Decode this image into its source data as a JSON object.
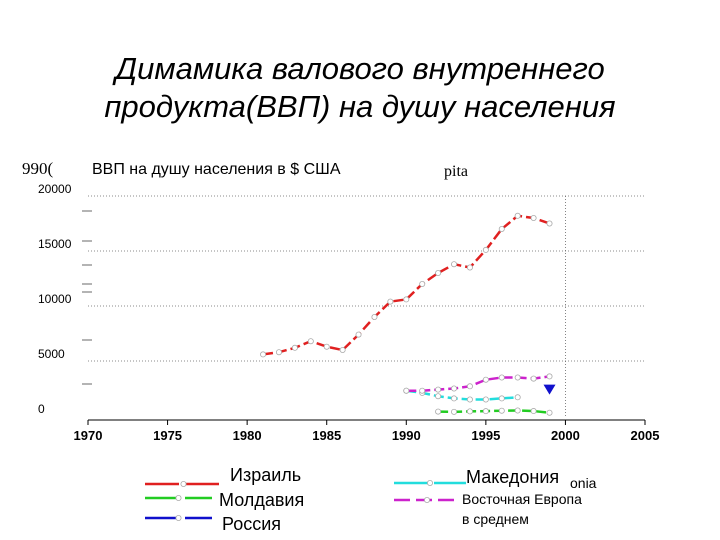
{
  "slide": {
    "title_line1": "Димамика валового внутреннего",
    "title_line2": "продукта(ВВП) на душу населения"
  },
  "chart_data": {
    "type": "line",
    "subtitle": "ВВП на душу населения в $ США",
    "artifact_left": "990(",
    "artifact_right": "pita",
    "xlim": [
      1970,
      2005
    ],
    "ylim": [
      0,
      20000
    ],
    "x_ticks": [
      1970,
      1975,
      1980,
      1985,
      1990,
      1995,
      2000,
      2005
    ],
    "y_ticks": [
      0,
      5000,
      10000,
      15000,
      20000
    ],
    "x_tick_labels": [
      "1970",
      "1975",
      "1980",
      "1985",
      "1990",
      "1995",
      "2000",
      "2005"
    ],
    "y_tick_labels": [
      "0",
      "5000",
      "10000",
      "15000",
      "20000"
    ],
    "grid": "dotted horizontal lines at y ticks, dotted vertical line at 2000",
    "series": [
      {
        "name": "Израиль",
        "color": "#e02020",
        "x": [
          1981,
          1982,
          1983,
          1984,
          1985,
          1986,
          1987,
          1988,
          1989,
          1990,
          1991,
          1992,
          1993,
          1994,
          1995,
          1996,
          1997,
          1998,
          1999
        ],
        "y": [
          5600,
          5800,
          6200,
          6800,
          6300,
          6000,
          7400,
          9000,
          10400,
          10600,
          12000,
          13000,
          13800,
          13500,
          15100,
          17000,
          18200,
          18000,
          17500
        ]
      },
      {
        "name": "Молдавия",
        "color": "#22cc22",
        "x": [
          1992,
          1993,
          1994,
          1995,
          1996,
          1997,
          1998,
          1999
        ],
        "y": [
          400,
          380,
          420,
          440,
          480,
          500,
          450,
          300
        ]
      },
      {
        "name": "Россия",
        "color": "#1010cc",
        "x": [
          1999
        ],
        "y": [
          2400
        ]
      },
      {
        "name": "Македония",
        "color": "#22dddd",
        "x": [
          1990,
          1991,
          1992,
          1993,
          1994,
          1995,
          1996,
          1997
        ],
        "y": [
          2300,
          2100,
          1800,
          1600,
          1500,
          1500,
          1600,
          1700
        ]
      },
      {
        "name": "Восточная Европа в среднем",
        "color": "#cc22cc",
        "x": [
          1990,
          1991,
          1992,
          1993,
          1994,
          1995,
          1996,
          1997,
          1998,
          1999
        ],
        "y": [
          2300,
          2300,
          2400,
          2500,
          2700,
          3300,
          3500,
          3500,
          3400,
          3600
        ]
      }
    ],
    "legend": {
      "left": [
        "Израиль",
        "Молдавия",
        "Россия"
      ],
      "right_line1": "Македония",
      "right_overlap": "onia",
      "right_line2": "Восточная Европа",
      "right_line3": "в среднем"
    }
  }
}
